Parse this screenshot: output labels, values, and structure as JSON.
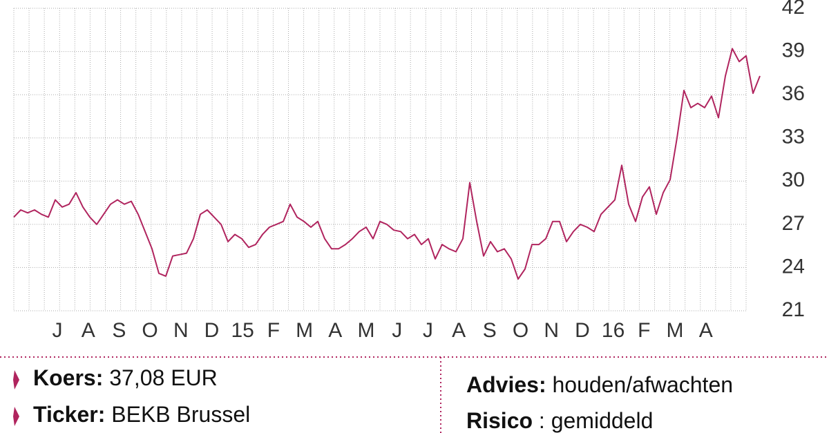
{
  "chart_data": {
    "type": "line",
    "x_labels": [
      "J",
      "A",
      "S",
      "O",
      "N",
      "D",
      "15",
      "F",
      "M",
      "A",
      "M",
      "J",
      "J",
      "A",
      "S",
      "O",
      "N",
      "D",
      "16",
      "F",
      "M",
      "A"
    ],
    "series": [
      {
        "color": "#b0245e",
        "values": [
          27.5,
          28.0,
          27.8,
          28.0,
          27.7,
          27.5,
          28.7,
          28.2,
          28.4,
          29.2,
          28.2,
          27.5,
          27.0,
          27.7,
          28.4,
          28.7,
          28.4,
          28.6,
          27.7,
          26.5,
          25.3,
          23.6,
          23.4,
          24.8,
          24.9,
          25.0,
          26.0,
          27.7,
          28.0,
          27.5,
          27.0,
          25.8,
          26.3,
          26.0,
          25.4,
          25.6,
          26.3,
          26.8,
          27.0,
          27.2,
          28.4,
          27.5,
          27.2,
          26.8,
          27.2,
          26.0,
          25.3,
          25.3,
          25.6,
          26.0,
          26.5,
          26.8,
          26.0,
          27.2,
          27.0,
          26.6,
          26.5,
          26.0,
          26.3,
          25.6,
          26.0,
          24.6,
          25.6,
          25.3,
          25.1,
          26.0,
          29.9,
          27.2,
          24.8,
          25.8,
          25.1,
          25.3,
          24.6,
          23.2,
          23.9,
          25.6,
          25.6,
          26.0,
          27.2,
          27.2,
          25.8,
          26.5,
          27.0,
          26.8,
          26.5,
          27.7,
          28.2,
          28.7,
          31.1,
          28.4,
          27.2,
          28.9,
          29.6,
          27.7,
          29.2,
          30.1,
          33.0,
          36.3,
          35.1,
          35.4,
          35.1,
          35.9,
          34.4,
          37.3,
          39.2,
          38.3,
          38.7,
          36.1,
          37.3
        ]
      }
    ],
    "ylim": [
      21,
      42
    ],
    "yticks": [
      21,
      24,
      27,
      30,
      33,
      36,
      39,
      42
    ],
    "grid": true
  },
  "info": {
    "left": [
      {
        "label": "Koers:",
        "value": "37,08 EUR"
      },
      {
        "label": "Ticker:",
        "value": "BEKB Brussel"
      }
    ],
    "right": [
      {
        "label": "Advies:",
        "value": "houden/afwachten"
      },
      {
        "label": "Risico",
        "value": ": gemiddeld"
      }
    ]
  }
}
